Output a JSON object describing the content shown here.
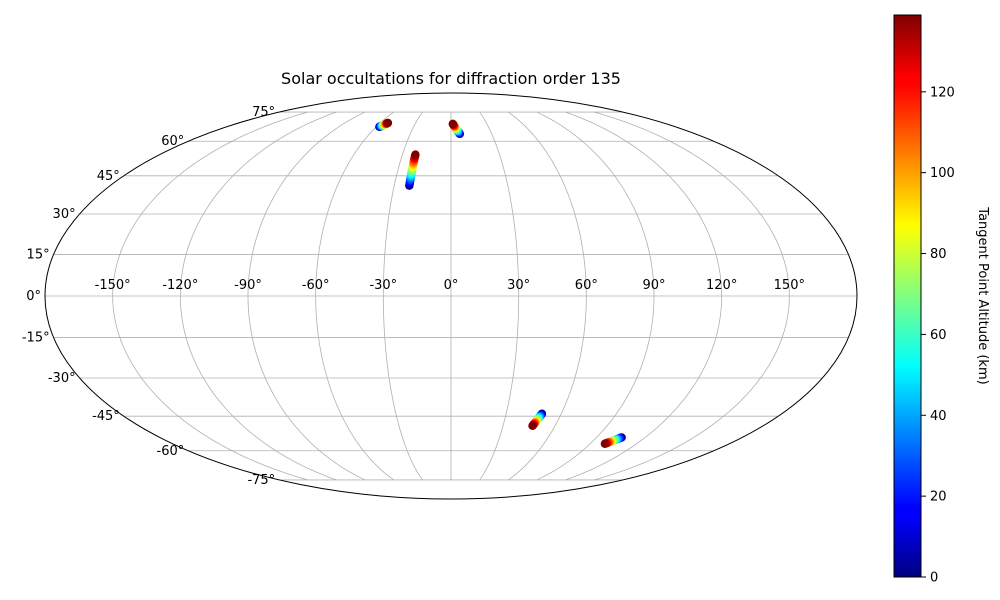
{
  "chart_data": {
    "type": "scatter",
    "projection": "mollweide",
    "title": "Solar occultations for diffraction order 135",
    "grid": true,
    "lon_ticks": [
      -150,
      -120,
      -90,
      -60,
      -30,
      0,
      30,
      60,
      90,
      120,
      150
    ],
    "lat_ticks": [
      -75,
      -60,
      -45,
      -30,
      -15,
      0,
      15,
      30,
      45,
      60,
      75
    ],
    "lon_tick_labels": [
      "-150°",
      "-120°",
      "-90°",
      "-60°",
      "-30°",
      "0°",
      "30°",
      "60°",
      "90°",
      "120°",
      "150°"
    ],
    "lat_tick_labels": [
      "-75°",
      "-60°",
      "-45°",
      "-30°",
      "-15°",
      "0°",
      "15°",
      "30°",
      "45°",
      "60°",
      "75°"
    ],
    "colorbar": {
      "label": "Tangent Point Altitude (km)",
      "range": [
        0,
        139
      ],
      "ticks": [
        0,
        20,
        40,
        60,
        80,
        100,
        120
      ],
      "tick_labels": [
        "0",
        "20",
        "40",
        "60",
        "80",
        "100",
        "120"
      ],
      "colormap": "jet"
    },
    "tracks": [
      {
        "start_lon": -57.5,
        "start_lat": 67.0,
        "end_lon": -53.5,
        "end_lat": 69.0,
        "start_alt": 0,
        "end_alt": 139
      },
      {
        "start_lon": 6.5,
        "start_lat": 63.5,
        "end_lon": 1.5,
        "end_lat": 68.5,
        "start_alt": 0,
        "end_alt": 139
      },
      {
        "start_lon": -22.0,
        "start_lat": 41.0,
        "end_lon": -22.0,
        "end_lat": 54.0,
        "start_alt": 0,
        "end_alt": 139
      },
      {
        "start_lon": 49.5,
        "start_lat": -44.0,
        "end_lon": 47.0,
        "end_lat": -49.0,
        "start_alt": 0,
        "end_alt": 139
      },
      {
        "start_lon": 105.5,
        "start_lat": -54.0,
        "end_lon": 99.5,
        "end_lat": -56.8,
        "start_alt": 0,
        "end_alt": 139
      }
    ]
  }
}
